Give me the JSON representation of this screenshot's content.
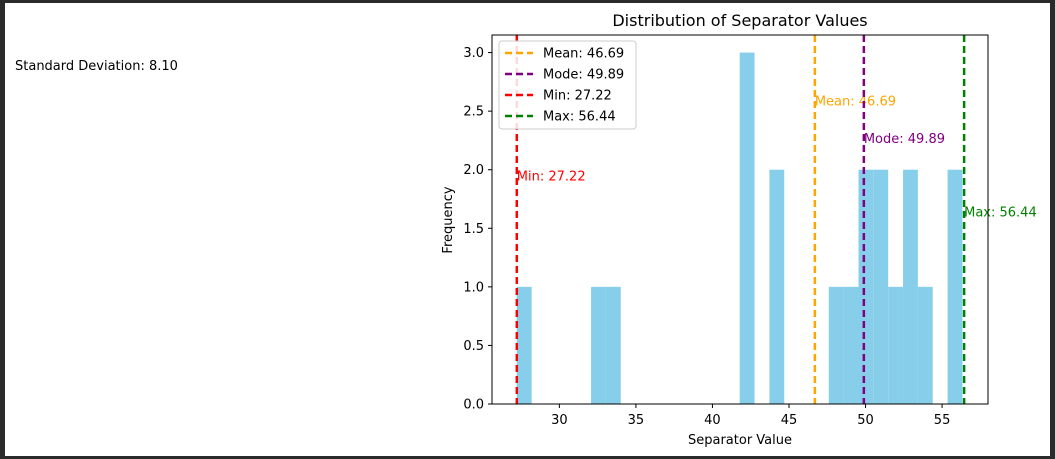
{
  "std_text": "Standard Deviation: 8.10",
  "chart_data": {
    "type": "bar",
    "title": "Distribution of Separator Values",
    "xlabel": "Separator Value",
    "ylabel": "Frequency",
    "xlim": [
      25.6,
      58.0
    ],
    "ylim": [
      0,
      3.15
    ],
    "xticks": [
      30,
      35,
      40,
      45,
      50,
      55
    ],
    "yticks": [
      0.0,
      0.5,
      1.0,
      1.5,
      2.0,
      2.5,
      3.0
    ],
    "bin_width": 0.97,
    "bins": [
      {
        "start": 27.22,
        "count": 1
      },
      {
        "start": 32.07,
        "count": 1
      },
      {
        "start": 33.04,
        "count": 1
      },
      {
        "start": 41.78,
        "count": 3
      },
      {
        "start": 43.72,
        "count": 2
      },
      {
        "start": 47.6,
        "count": 1
      },
      {
        "start": 48.57,
        "count": 1
      },
      {
        "start": 49.54,
        "count": 2
      },
      {
        "start": 50.51,
        "count": 2
      },
      {
        "start": 51.48,
        "count": 1
      },
      {
        "start": 52.45,
        "count": 2
      },
      {
        "start": 53.42,
        "count": 1
      },
      {
        "start": 55.36,
        "count": 2
      }
    ],
    "bar_color": "#87ceeb",
    "lines": [
      {
        "legend": "Mean: 46.69",
        "text": "Mean: 46.69",
        "x": 46.69,
        "color": "#ffa500",
        "label_y": 2.55
      },
      {
        "legend": "Mode: 49.89",
        "text": "Mode: 49.89",
        "x": 49.89,
        "color": "#800080",
        "label_y": 2.23
      },
      {
        "legend": "Min: 27.22",
        "text": "Min: 27.22",
        "x": 27.22,
        "color": "#ff0000",
        "label_y": 1.91
      },
      {
        "legend": "Max: 56.44",
        "text": "Max: 56.44",
        "x": 56.44,
        "color": "#008000",
        "label_y": 1.6
      }
    ],
    "legend_position": "upper left",
    "grid": false
  }
}
